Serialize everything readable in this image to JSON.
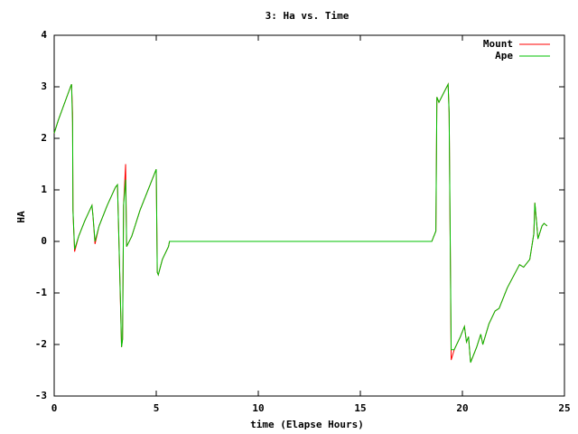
{
  "chart_data": {
    "type": "line",
    "title": "3: Ha vs. Time",
    "xlabel": "time (Elapse Hours)",
    "ylabel": "HA",
    "x": [
      0,
      0.2,
      0.8,
      0.85,
      0.9,
      0.92,
      1.0,
      1.2,
      1.5,
      1.85,
      1.9,
      2.0,
      2.2,
      2.6,
      3.0,
      3.1,
      3.15,
      3.25,
      3.3,
      3.35,
      3.4,
      3.5,
      3.55,
      3.8,
      4.2,
      4.7,
      5.0,
      5.05,
      5.1,
      5.3,
      5.6,
      5.65,
      18.5,
      18.7,
      18.75,
      18.85,
      19.3,
      19.35,
      19.45,
      19.6,
      19.9,
      20.1,
      20.2,
      20.3,
      20.4,
      20.7,
      20.9,
      21.0,
      21.3,
      21.6,
      21.8,
      22.2,
      22.6,
      22.8,
      23.0,
      23.3,
      23.4,
      23.5,
      23.55,
      23.65,
      23.7,
      23.9,
      24.0,
      24.15
    ],
    "series": [
      {
        "name": "Mount",
        "color": "#ff0000",
        "values": [
          2.1,
          2.35,
          3.0,
          3.05,
          2.5,
          0.6,
          -0.2,
          0.1,
          0.4,
          0.7,
          0.5,
          -0.05,
          0.3,
          0.7,
          1.05,
          1.1,
          0.35,
          -1.25,
          -2.05,
          -1.9,
          0.7,
          1.5,
          -0.1,
          0.1,
          0.6,
          1.1,
          1.4,
          -0.6,
          -0.65,
          -0.35,
          -0.1,
          0,
          0,
          0.2,
          2.8,
          2.7,
          3.05,
          2.5,
          -2.3,
          -2.1,
          -1.85,
          -1.65,
          -1.95,
          -1.85,
          -2.35,
          -2.05,
          -1.8,
          -2.0,
          -1.6,
          -1.35,
          -1.3,
          -0.9,
          -0.6,
          -0.45,
          -0.5,
          -0.35,
          -0.1,
          0.15,
          0.75,
          0.3,
          0.05,
          0.3,
          0.35,
          0.3
        ]
      },
      {
        "name": "Ape",
        "color": "#00c000",
        "values": [
          2.1,
          2.35,
          3.0,
          3.05,
          2.3,
          0.6,
          -0.15,
          0.1,
          0.4,
          0.7,
          0.5,
          0.0,
          0.3,
          0.7,
          1.05,
          1.1,
          0.35,
          -1.2,
          -2.05,
          -1.9,
          0.7,
          1.2,
          -0.1,
          0.1,
          0.6,
          1.1,
          1.4,
          -0.6,
          -0.65,
          -0.35,
          -0.1,
          0,
          0,
          0.2,
          2.8,
          2.7,
          3.05,
          2.5,
          -2.1,
          -2.1,
          -1.85,
          -1.65,
          -1.95,
          -1.85,
          -2.35,
          -2.05,
          -1.8,
          -2.0,
          -1.6,
          -1.35,
          -1.3,
          -0.9,
          -0.6,
          -0.45,
          -0.5,
          -0.35,
          -0.1,
          0.15,
          0.75,
          0.3,
          0.05,
          0.3,
          0.35,
          0.3
        ]
      }
    ],
    "xlim": [
      0,
      25
    ],
    "xticks": [
      0,
      5,
      10,
      15,
      20,
      25
    ],
    "ylim": [
      -3,
      4
    ],
    "yticks": [
      -3,
      -2,
      -1,
      0,
      1,
      2,
      3,
      4
    ],
    "legend": "top-right"
  }
}
